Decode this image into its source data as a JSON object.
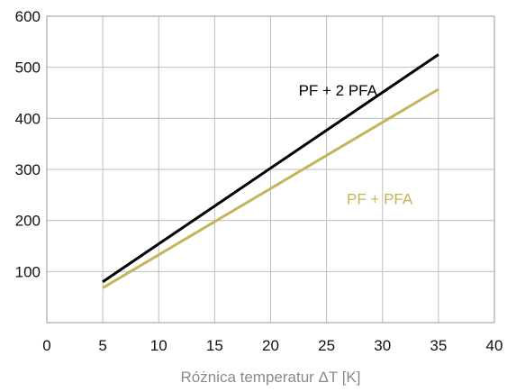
{
  "chart_data": {
    "type": "line",
    "title": "",
    "xlabel": "Różnica temperatur ΔT [K]",
    "ylabel": "",
    "xlim": [
      0,
      40
    ],
    "ylim": [
      0,
      600
    ],
    "x_ticks": [
      "0",
      "5",
      "10",
      "15",
      "20",
      "25",
      "30",
      "35",
      "40"
    ],
    "y_ticks": [
      "100",
      "200",
      "300",
      "400",
      "500",
      "600"
    ],
    "grid": true,
    "legend": "none",
    "series": [
      {
        "name": "PF + 2 PFA",
        "color": "#000000",
        "x": [
          5,
          35
        ],
        "y": [
          80,
          525
        ]
      },
      {
        "name": "PF + PFA",
        "color": "#c2b55a",
        "x": [
          5,
          35
        ],
        "y": [
          68,
          457
        ]
      }
    ]
  }
}
